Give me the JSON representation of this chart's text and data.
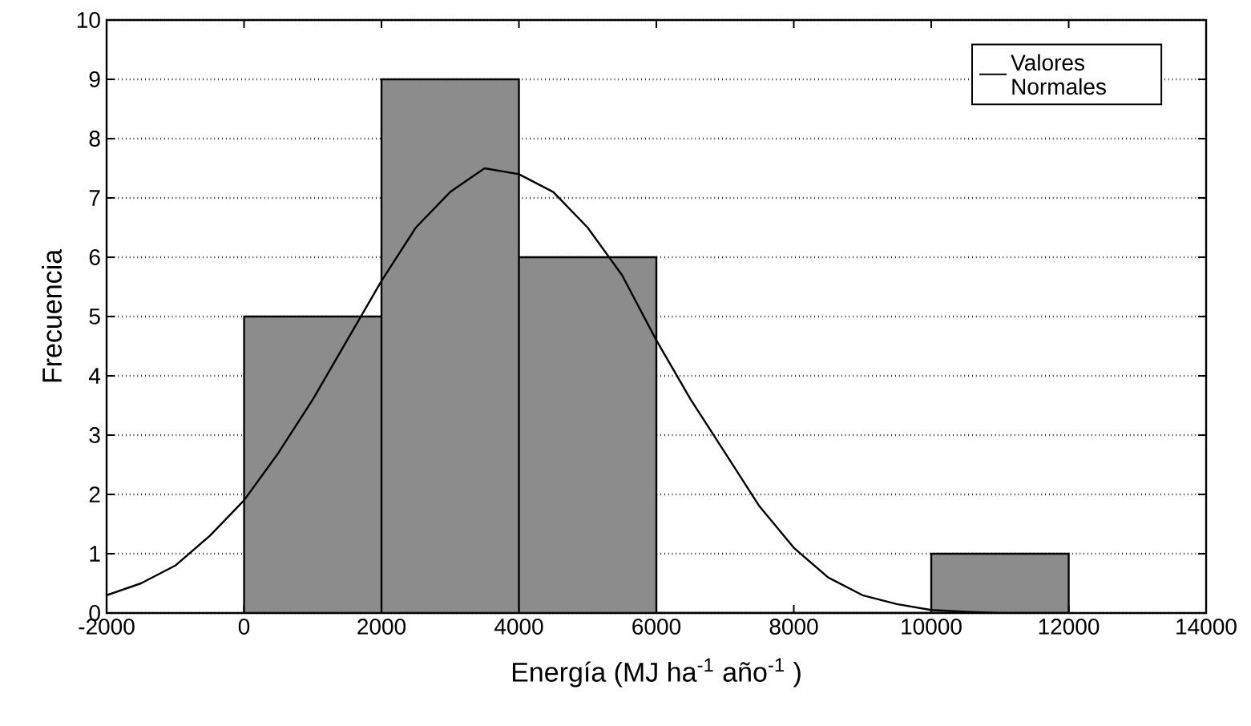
{
  "chart_data": {
    "type": "histogram",
    "xlabel": "Energía (MJ ha$^{-1}$ año$^{-1}$ )",
    "ylabel": "Frecuencia",
    "bins": [
      0,
      2000,
      4000,
      6000,
      8000,
      10000,
      12000
    ],
    "values": [
      5,
      9,
      6,
      0,
      0,
      1
    ],
    "color": "#8c8c8c",
    "series": [
      {
        "type": "line",
        "name": "Valores Normales",
        "color": "#000000",
        "x": [
          -2000,
          -1500,
          -1000,
          -500,
          0,
          500,
          1000,
          1500,
          2000,
          2500,
          3000,
          3500,
          4000,
          4500,
          5000,
          5500,
          6000,
          6500,
          7000,
          7500,
          8000,
          8500,
          9000,
          9500,
          10000,
          10500,
          11000,
          12000
        ],
        "values": [
          0.3,
          0.5,
          0.8,
          1.3,
          1.9,
          2.7,
          3.6,
          4.6,
          5.6,
          6.5,
          7.1,
          7.5,
          7.4,
          7.1,
          6.5,
          5.7,
          4.6,
          3.6,
          2.7,
          1.8,
          1.1,
          0.6,
          0.3,
          0.15,
          0.05,
          0.02,
          0,
          0
        ]
      }
    ],
    "xlim": [
      -2000,
      14000
    ],
    "xticks": [
      -2000,
      0,
      2000,
      4000,
      6000,
      8000,
      10000,
      12000,
      14000
    ],
    "ylim": [
      0,
      10
    ],
    "yticks": [
      0,
      1,
      2,
      3,
      4,
      5,
      6,
      7,
      8,
      9,
      10
    ],
    "grid": "y",
    "legend": "top right"
  }
}
